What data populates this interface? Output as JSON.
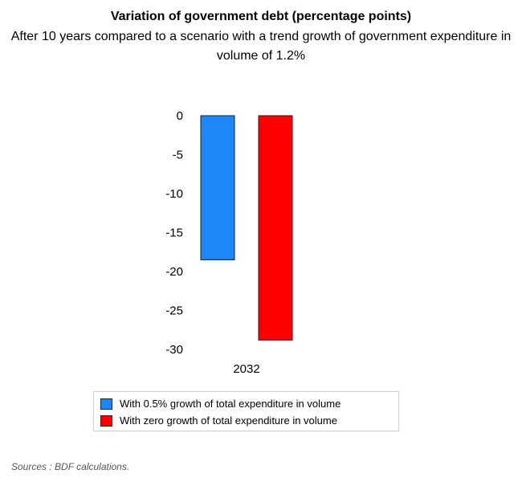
{
  "chart_data": {
    "type": "bar",
    "title": "Variation of government debt (percentage points)",
    "subtitle": "After 10 years compared to a scenario with a trend growth of government expenditure in volume of 1.2%",
    "categories": [
      "2032"
    ],
    "series": [
      {
        "name": "With 0.5% growth of total expenditure in volume",
        "values": [
          -18.5
        ],
        "color": "#1f86f7"
      },
      {
        "name": "With zero growth of total expenditure in volume",
        "values": [
          -28.8
        ],
        "color": "#ff0000"
      }
    ],
    "yticks": [
      0,
      -5,
      -10,
      -15,
      -20,
      -25,
      -30
    ],
    "ylim": [
      -30,
      0
    ],
    "xlabel": "",
    "ylabel": "",
    "legend_position": "bottom"
  },
  "source": "Sources : BDF calculations."
}
